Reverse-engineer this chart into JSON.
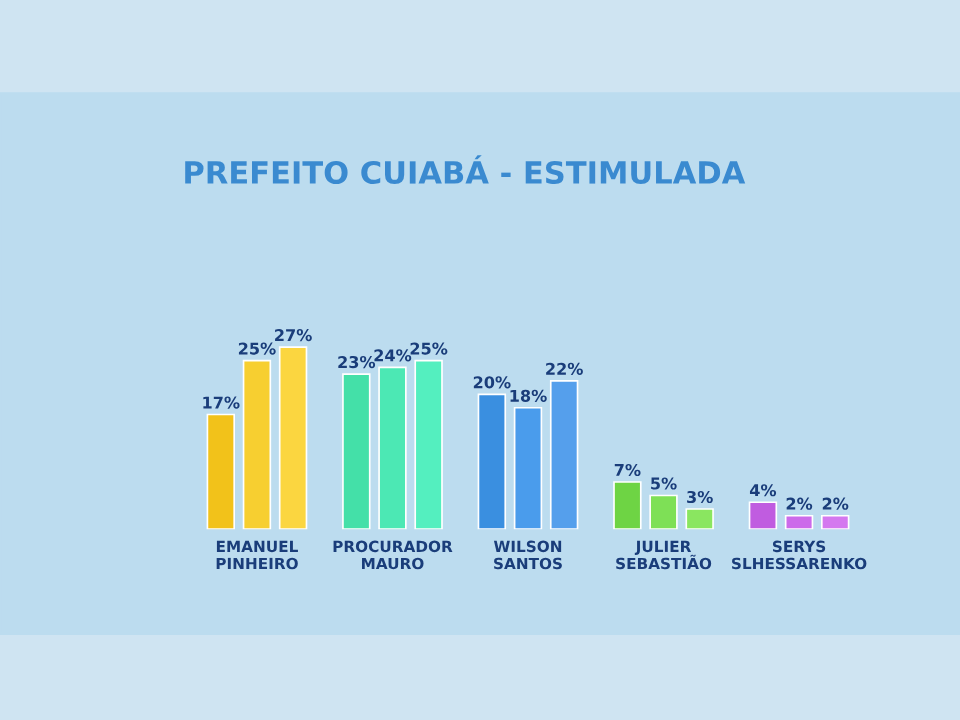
{
  "chart_data": {
    "type": "bar",
    "title": "PREFEITO CUIABÁ - ESTIMULADA",
    "categories": [
      "EMANUEL\nPINHEIRO",
      "PROCURADOR\nMAURO",
      "WILSON\nSANTOS",
      "JULIER\nSEBASTIÃO",
      "SERYS\nSLHESSARENKO"
    ],
    "series": [
      {
        "colors": [
          "#f2c21a",
          "#44e0a8",
          "#3a8fe0",
          "#6ed444",
          "#c05ce0"
        ],
        "values": [
          17,
          23,
          20,
          7,
          4
        ],
        "value_labels": [
          "17%",
          "23%",
          "20%",
          "7%",
          "4%"
        ]
      },
      {
        "colors": [
          "#f7cf30",
          "#4ce8b4",
          "#4a9cec",
          "#7ee056",
          "#cc6aea"
        ],
        "values": [
          25,
          24,
          18,
          5,
          2
        ],
        "value_labels": [
          "25%",
          "24%",
          "18%",
          "5%",
          "2%"
        ]
      },
      {
        "colors": [
          "#fbd640",
          "#54efbf",
          "#559fec",
          "#8ae660",
          "#d478ef"
        ],
        "values": [
          27,
          25,
          22,
          3,
          2
        ],
        "value_labels": [
          "27%",
          "25%",
          "22%",
          "3%",
          "2%"
        ]
      }
    ],
    "grid": false,
    "legend": false
  }
}
